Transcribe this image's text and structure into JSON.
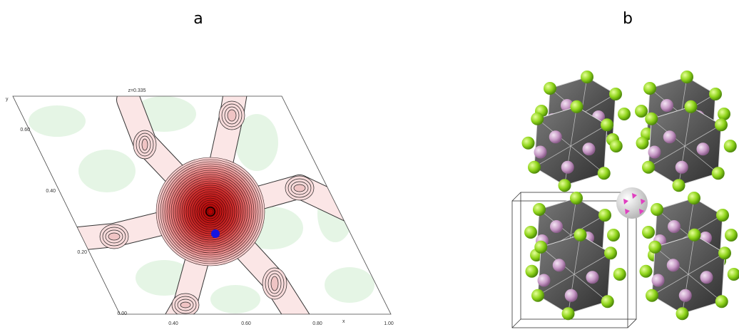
{
  "panels": [
    {
      "label": "a",
      "plot_title": "z=0.335",
      "x_label": "x",
      "y_label": "y",
      "x_tick_labels": [
        "0.40",
        "0.60",
        "0.80",
        "1.00"
      ],
      "y_tick_labels": [
        "0.00",
        "0.20",
        "0.40",
        "0.60"
      ]
    },
    {
      "label": "b"
    }
  ]
}
